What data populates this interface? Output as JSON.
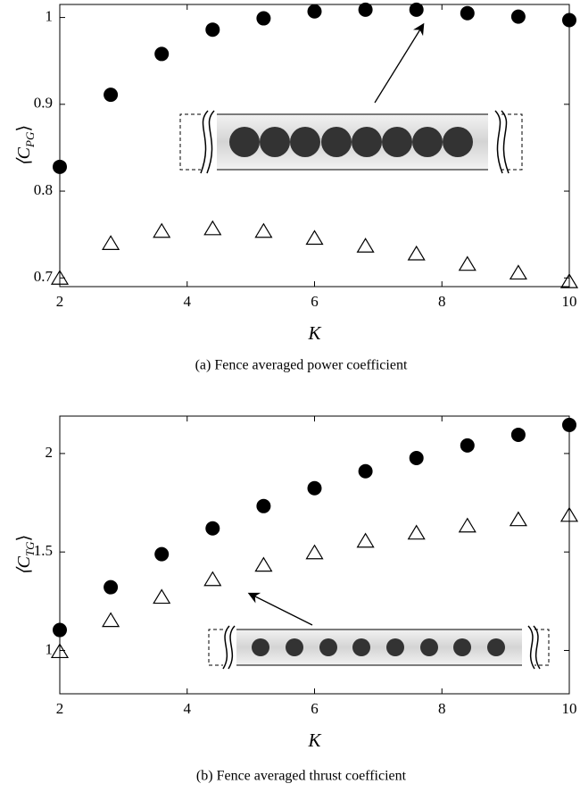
{
  "chart_data": [
    {
      "type": "scatter",
      "caption": "(a) Fence averaged power coefficient",
      "xlabel": "K",
      "ylabel": [
        "⟨C",
        "PG",
        "⟩"
      ],
      "x": [
        2,
        2.8,
        3.6,
        4.4,
        5.2,
        6,
        6.8,
        7.6,
        8.4,
        9.2,
        10
      ],
      "series": [
        {
          "marker": "circle",
          "color": "#000000",
          "values": [
            0.828,
            0.911,
            0.958,
            0.986,
            0.999,
            1.007,
            1.009,
            1.009,
            1.005,
            1.001,
            0.997
          ]
        },
        {
          "marker": "triangle",
          "color": "#000000",
          "values": [
            0.699,
            0.739,
            0.753,
            0.756,
            0.753,
            0.745,
            0.736,
            0.727,
            0.715,
            0.705,
            0.695
          ]
        }
      ],
      "xlim": [
        2,
        10
      ],
      "xticks": [
        2,
        4,
        6,
        8,
        10
      ],
      "ylim": [
        0.69,
        1.015
      ],
      "yticks": [
        0.7,
        0.8,
        0.9,
        1
      ]
    },
    {
      "type": "scatter",
      "caption": "(b) Fence averaged thrust coefficient",
      "xlabel": "K",
      "ylabel": [
        "⟨C",
        "TG",
        "⟩"
      ],
      "x": [
        2,
        2.8,
        3.6,
        4.4,
        5.2,
        6,
        6.8,
        7.6,
        8.4,
        9.2,
        10
      ],
      "series": [
        {
          "marker": "circle",
          "color": "#000000",
          "values": [
            1.104,
            1.321,
            1.489,
            1.62,
            1.733,
            1.824,
            1.91,
            1.977,
            2.041,
            2.095,
            2.145
          ]
        },
        {
          "marker": "triangle",
          "color": "#000000",
          "values": [
            0.991,
            1.149,
            1.267,
            1.357,
            1.43,
            1.493,
            1.552,
            1.593,
            1.629,
            1.661,
            1.683
          ]
        }
      ],
      "xlim": [
        2,
        10
      ],
      "xticks": [
        2,
        4,
        6,
        8,
        10
      ],
      "ylim": [
        0.78,
        2.19
      ],
      "yticks": [
        1,
        1.5,
        2
      ]
    }
  ]
}
